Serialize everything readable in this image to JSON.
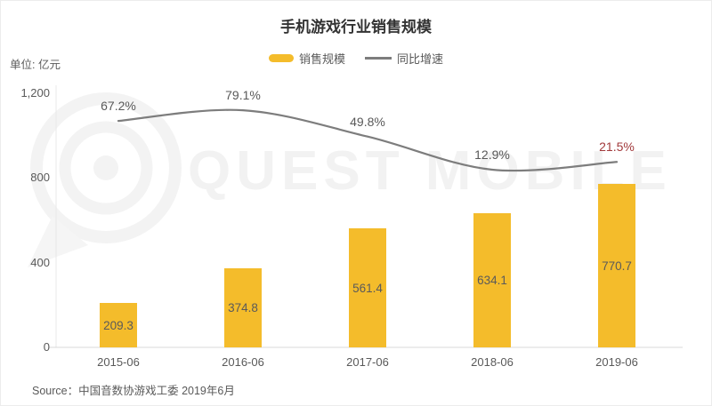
{
  "header": {
    "title": "手机游戏行业销售规模",
    "unit_label": "单位: 亿元"
  },
  "legend": {
    "items": [
      {
        "label": "销售规模",
        "marker": "bar-swatch",
        "color": "#F4BC2B"
      },
      {
        "label": "同比增速",
        "marker": "line-swatch",
        "color": "#7D7D7D"
      }
    ]
  },
  "watermark": {
    "text": "QUEST MOBILE",
    "logo": "quest-mobile-logo"
  },
  "footer": {
    "source": "Source：中国音数协游戏工委 2019年6月"
  },
  "chart_data": {
    "type": "bar",
    "title": "手机游戏行业销售规模",
    "categories": [
      "2015-06",
      "2016-06",
      "2017-06",
      "2018-06",
      "2019-06"
    ],
    "series": [
      {
        "name": "销售规模",
        "type": "bar",
        "unit": "亿元",
        "color": "#F4BC2B",
        "values": [
          209.3,
          374.8,
          561.4,
          634.1,
          770.7
        ],
        "value_labels": [
          "209.3",
          "374.8",
          "561.4",
          "634.1",
          "770.7"
        ],
        "value_label_color": "#5A5A5A"
      },
      {
        "name": "同比增速",
        "type": "line",
        "unit": "%",
        "color": "#7D7D7D",
        "values": [
          67.2,
          79.1,
          49.8,
          12.9,
          21.5
        ],
        "value_labels": [
          "67.2%",
          "79.1%",
          "49.8%",
          "12.9%",
          "21.5%"
        ],
        "label_colors": [
          "#595959",
          "#595959",
          "#595959",
          "#595959",
          "#A23A3C"
        ]
      }
    ],
    "yaxis": {
      "title": "单位: 亿元",
      "ticks": [
        0,
        400,
        800,
        1200
      ],
      "tick_labels": [
        "0",
        "400",
        "800",
        "1,200"
      ],
      "min": 0,
      "max": 1200
    },
    "grid": false,
    "legend_position": "top"
  }
}
